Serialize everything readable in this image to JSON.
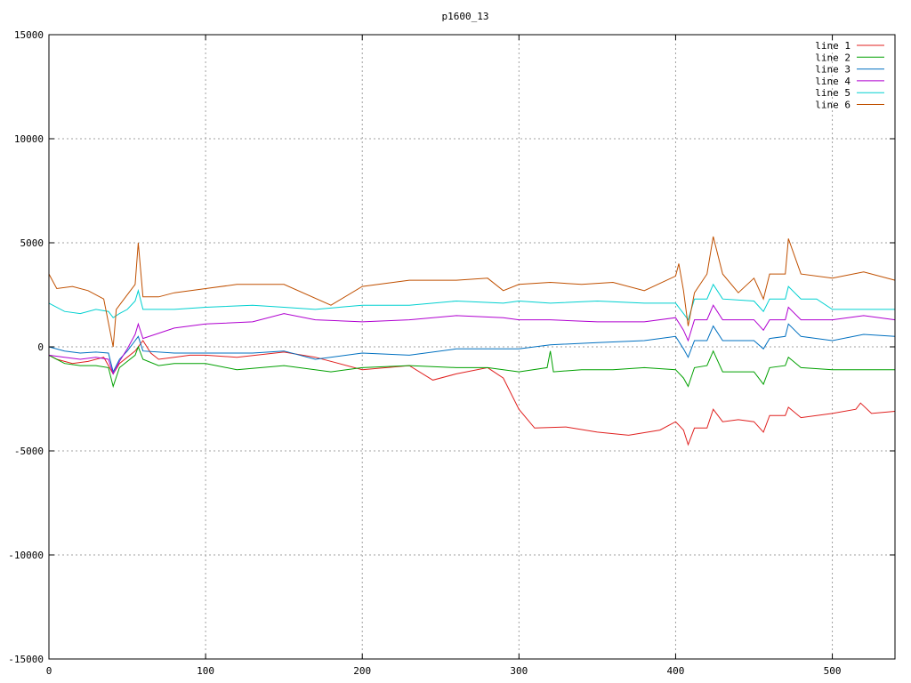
{
  "chart_data": {
    "type": "line",
    "title": "p1600_13",
    "xlabel": "",
    "ylabel": "",
    "xlim": [
      0,
      540
    ],
    "ylim": [
      -15000,
      15000
    ],
    "xticks": [
      0,
      100,
      200,
      300,
      400,
      500
    ],
    "yticks": [
      -15000,
      -10000,
      -5000,
      0,
      5000,
      10000,
      15000
    ],
    "xtick_labels": [
      "0",
      "100",
      "200",
      "300",
      "400",
      "500"
    ],
    "ytick_labels": [
      "-15000",
      "-10000",
      "-5000",
      "0",
      "5000",
      "10000",
      "15000"
    ],
    "grid": true,
    "legend_position": "top-right",
    "series": [
      {
        "name": "line 1",
        "color": "#e0201f",
        "x": [
          0,
          5,
          15,
          25,
          35,
          41,
          45,
          50,
          55,
          60,
          65,
          70,
          80,
          90,
          100,
          120,
          150,
          170,
          200,
          230,
          245,
          260,
          280,
          290,
          300,
          310,
          330,
          350,
          370,
          390,
          400,
          405,
          408,
          412,
          420,
          424,
          430,
          440,
          450,
          456,
          460,
          470,
          472,
          480,
          500,
          515,
          518,
          525,
          540
        ],
        "y": [
          -400,
          -600,
          -800,
          -700,
          -500,
          -1300,
          -800,
          -500,
          -200,
          300,
          -300,
          -600,
          -500,
          -400,
          -400,
          -500,
          -250,
          -500,
          -1100,
          -900,
          -1600,
          -1300,
          -1000,
          -1500,
          -3000,
          -3900,
          -3850,
          -4100,
          -4250,
          -4000,
          -3600,
          -4000,
          -4700,
          -3900,
          -3900,
          -3000,
          -3600,
          -3500,
          -3600,
          -4100,
          -3300,
          -3300,
          -2900,
          -3400,
          -3200,
          -3000,
          -2700,
          -3200,
          -3100
        ]
      },
      {
        "name": "line 2",
        "color": "#00a000",
        "x": [
          0,
          10,
          20,
          30,
          38,
          41,
          45,
          50,
          55,
          57,
          60,
          70,
          80,
          100,
          120,
          150,
          180,
          200,
          230,
          260,
          280,
          300,
          318,
          320,
          322,
          340,
          360,
          380,
          400,
          405,
          408,
          412,
          420,
          424,
          430,
          450,
          456,
          460,
          470,
          472,
          480,
          500,
          520,
          540
        ],
        "y": [
          -400,
          -800,
          -900,
          -900,
          -1000,
          -1900,
          -1000,
          -700,
          -400,
          0,
          -600,
          -900,
          -800,
          -800,
          -1100,
          -900,
          -1200,
          -1000,
          -900,
          -1000,
          -1000,
          -1200,
          -1000,
          -200,
          -1200,
          -1100,
          -1100,
          -1000,
          -1100,
          -1500,
          -1900,
          -1000,
          -900,
          -200,
          -1200,
          -1200,
          -1800,
          -1000,
          -900,
          -500,
          -1000,
          -1100,
          -1100,
          -1100
        ]
      },
      {
        "name": "line 3",
        "color": "#0070c0",
        "x": [
          0,
          10,
          20,
          30,
          38,
          41,
          45,
          50,
          55,
          57,
          60,
          80,
          100,
          130,
          150,
          170,
          200,
          230,
          260,
          290,
          300,
          320,
          350,
          380,
          400,
          405,
          408,
          412,
          420,
          424,
          430,
          450,
          456,
          460,
          470,
          472,
          480,
          500,
          520,
          540
        ],
        "y": [
          0,
          -200,
          -300,
          -250,
          -300,
          -1200,
          -600,
          -200,
          300,
          500,
          -200,
          -300,
          -300,
          -300,
          -200,
          -600,
          -300,
          -400,
          -100,
          -100,
          -100,
          100,
          200,
          300,
          500,
          -100,
          -500,
          300,
          300,
          1000,
          300,
          300,
          -100,
          400,
          500,
          1100,
          500,
          300,
          600,
          500
        ]
      },
      {
        "name": "line 4",
        "color": "#b000d0",
        "x": [
          0,
          10,
          20,
          30,
          38,
          41,
          45,
          50,
          55,
          57,
          60,
          80,
          100,
          130,
          150,
          170,
          200,
          230,
          260,
          290,
          300,
          320,
          350,
          380,
          400,
          405,
          408,
          412,
          420,
          424,
          430,
          450,
          456,
          460,
          470,
          472,
          480,
          500,
          520,
          540
        ],
        "y": [
          -400,
          -500,
          -600,
          -500,
          -600,
          -1300,
          -700,
          -100,
          600,
          1100,
          400,
          900,
          1100,
          1200,
          1600,
          1300,
          1200,
          1300,
          1500,
          1400,
          1300,
          1300,
          1200,
          1200,
          1400,
          800,
          300,
          1300,
          1300,
          2000,
          1300,
          1300,
          800,
          1300,
          1300,
          1900,
          1300,
          1300,
          1500,
          1300
        ]
      },
      {
        "name": "line 5",
        "color": "#00d0d0",
        "x": [
          0,
          10,
          20,
          30,
          38,
          41,
          45,
          50,
          55,
          57,
          60,
          80,
          100,
          130,
          150,
          170,
          200,
          230,
          260,
          290,
          300,
          320,
          350,
          380,
          400,
          405,
          408,
          412,
          420,
          424,
          430,
          450,
          456,
          460,
          470,
          472,
          480,
          490,
          500,
          520,
          540
        ],
        "y": [
          2100,
          1700,
          1600,
          1800,
          1700,
          1400,
          1600,
          1800,
          2200,
          2700,
          1800,
          1800,
          1900,
          2000,
          1900,
          1800,
          2000,
          2000,
          2200,
          2100,
          2200,
          2100,
          2200,
          2100,
          2100,
          1600,
          1300,
          2300,
          2300,
          3000,
          2300,
          2200,
          1700,
          2300,
          2300,
          2900,
          2300,
          2300,
          1800,
          1800,
          1800
        ]
      },
      {
        "name": "line 6",
        "color": "#c05000",
        "x": [
          0,
          5,
          15,
          25,
          35,
          41,
          43,
          48,
          55,
          57,
          60,
          70,
          80,
          100,
          120,
          150,
          180,
          200,
          230,
          260,
          280,
          290,
          300,
          320,
          340,
          360,
          380,
          400,
          402,
          405,
          408,
          412,
          420,
          424,
          430,
          440,
          450,
          456,
          460,
          470,
          472,
          480,
          500,
          520,
          540
        ],
        "y": [
          3500,
          2800,
          2900,
          2700,
          2300,
          0,
          1800,
          2300,
          3000,
          5000,
          2400,
          2400,
          2600,
          2800,
          3000,
          3000,
          2000,
          2900,
          3200,
          3200,
          3300,
          2700,
          3000,
          3100,
          3000,
          3100,
          2700,
          3400,
          4000,
          2700,
          1000,
          2600,
          3500,
          5300,
          3500,
          2600,
          3300,
          2300,
          3500,
          3500,
          5200,
          3500,
          3300,
          3600,
          3200
        ]
      }
    ]
  }
}
